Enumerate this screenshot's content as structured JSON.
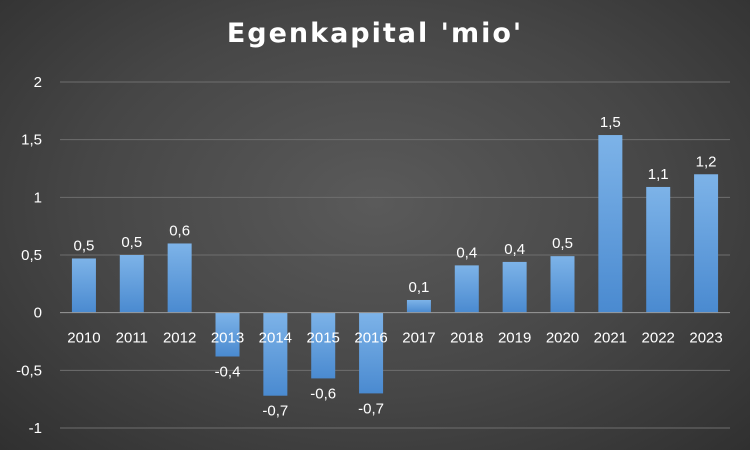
{
  "chart_data": {
    "type": "bar",
    "title": "Egenkapital 'mio'",
    "xlabel": "",
    "ylabel": "",
    "categories": [
      "2010",
      "2011",
      "2012",
      "2013",
      "2014",
      "2015",
      "2016",
      "2017",
      "2018",
      "2019",
      "2020",
      "2021",
      "2022",
      "2023"
    ],
    "values": [
      0.47,
      0.5,
      0.6,
      -0.38,
      -0.72,
      -0.57,
      -0.7,
      0.11,
      0.41,
      0.44,
      0.49,
      1.54,
      1.09,
      1.2
    ],
    "data_labels": [
      "0,5",
      "0,5",
      "0,6",
      "-0,4",
      "-0,7",
      "-0,6",
      "-0,7",
      "0,1",
      "0,4",
      "0,4",
      "0,5",
      "1,5",
      "1,1",
      "1,2"
    ],
    "ylim": [
      -1,
      2
    ],
    "yticks": [
      2,
      1.5,
      1,
      0.5,
      0,
      -0.5,
      -1
    ],
    "ytick_labels": [
      "2",
      "1,5",
      "1",
      "0,5",
      "0",
      "-0,5",
      "-1"
    ],
    "grid": true,
    "legend": "none",
    "colors": {
      "bar": "#5b9bd5",
      "bar_light": "#7db3e8",
      "grid": "#6e6e6e",
      "text": "#ffffff"
    }
  }
}
